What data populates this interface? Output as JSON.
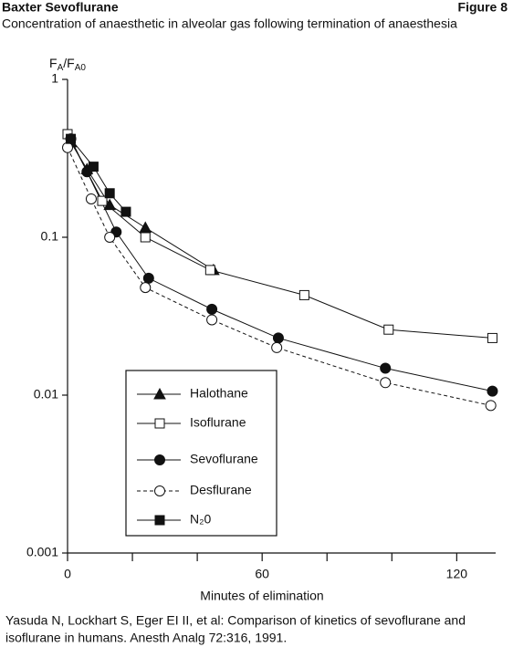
{
  "chart_data": {
    "type": "line",
    "header": "Baxter Sevoflurane",
    "figure": "Figure 8",
    "title": "Concentration of anaesthetic in alveolar gas following termination of anaesthesia",
    "y_label": {
      "f1": "F",
      "s1": "A",
      "f2": "/F",
      "s2": "A0"
    },
    "x_label": "Minutes of elimination",
    "citation": [
      "Yasuda N, Lockhart S, Eger EI II, et al: Comparison of kinetics of sevoflurane and",
      "isoflurane in humans. Anesth Analg 72:316, 1991."
    ],
    "log_y": true,
    "xlim": [
      0,
      132
    ],
    "xticks": [
      0,
      60,
      120
    ],
    "xminorticks": [
      20,
      40,
      80,
      100
    ],
    "ylim": [
      0.001,
      1
    ],
    "yticks": [
      1,
      0.1,
      0.01,
      0.001
    ],
    "series": [
      {
        "name": "Halothane",
        "color": "#111111",
        "marker": "triangle",
        "dash": false,
        "x": [
          1,
          6,
          13,
          24,
          45
        ],
        "values": [
          0.4,
          0.27,
          0.16,
          0.115,
          0.062
        ]
      },
      {
        "name": "Isoflurane",
        "color": "#111111",
        "marker": "square-open",
        "dash": false,
        "x": [
          0,
          10.7,
          24,
          44,
          73,
          99,
          131
        ],
        "values": [
          0.45,
          0.17,
          0.1,
          0.062,
          0.043,
          0.026,
          0.023
        ]
      },
      {
        "name": "Sevoflurane",
        "color": "#111111",
        "marker": "circle",
        "dash": false,
        "x": [
          1,
          6,
          15,
          25,
          44.5,
          65,
          98,
          131
        ],
        "values": [
          0.42,
          0.26,
          0.108,
          0.055,
          0.035,
          0.023,
          0.0148,
          0.0106
        ]
      },
      {
        "name": "Desflurane",
        "color": "#111111",
        "marker": "circle-open",
        "dash": true,
        "x": [
          0,
          7.3,
          13,
          24,
          44.5,
          64.5,
          98,
          130.5
        ],
        "values": [
          0.37,
          0.175,
          0.1,
          0.048,
          0.03,
          0.02,
          0.012,
          0.0086
        ]
      },
      {
        "name": "N₂0",
        "color": "#111111",
        "marker": "square",
        "dash": false,
        "x": [
          1,
          8,
          13,
          18
        ],
        "values": [
          0.42,
          0.28,
          0.19,
          0.145
        ]
      }
    ]
  }
}
